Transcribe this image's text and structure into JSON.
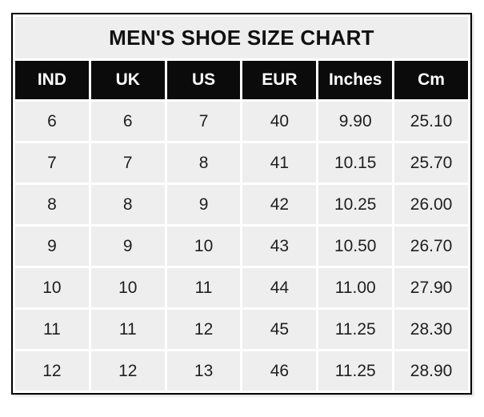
{
  "colors": {
    "page_bg": "#ffffff",
    "title_bg": "#eeeeee",
    "title_text": "#111111",
    "header_bg": "#0b0b0b",
    "header_text": "#ffffff",
    "cell_bg": "#eeeeee",
    "cell_text": "#202020",
    "table_border": "#000000",
    "gap": "#ffffff"
  },
  "chart_data": {
    "type": "table",
    "title": "MEN'S SHOE SIZE CHART",
    "columns": [
      "IND",
      "UK",
      "US",
      "EUR",
      "Inches",
      "Cm"
    ],
    "rows": [
      [
        "6",
        "6",
        "7",
        "40",
        "9.90",
        "25.10"
      ],
      [
        "7",
        "7",
        "8",
        "41",
        "10.15",
        "25.70"
      ],
      [
        "8",
        "8",
        "9",
        "42",
        "10.25",
        "26.00"
      ],
      [
        "9",
        "9",
        "10",
        "43",
        "10.50",
        "26.70"
      ],
      [
        "10",
        "10",
        "11",
        "44",
        "11.00",
        "27.90"
      ],
      [
        "11",
        "11",
        "12",
        "45",
        "11.25",
        "28.30"
      ],
      [
        "12",
        "12",
        "13",
        "46",
        "11.25",
        "28.90"
      ]
    ]
  }
}
